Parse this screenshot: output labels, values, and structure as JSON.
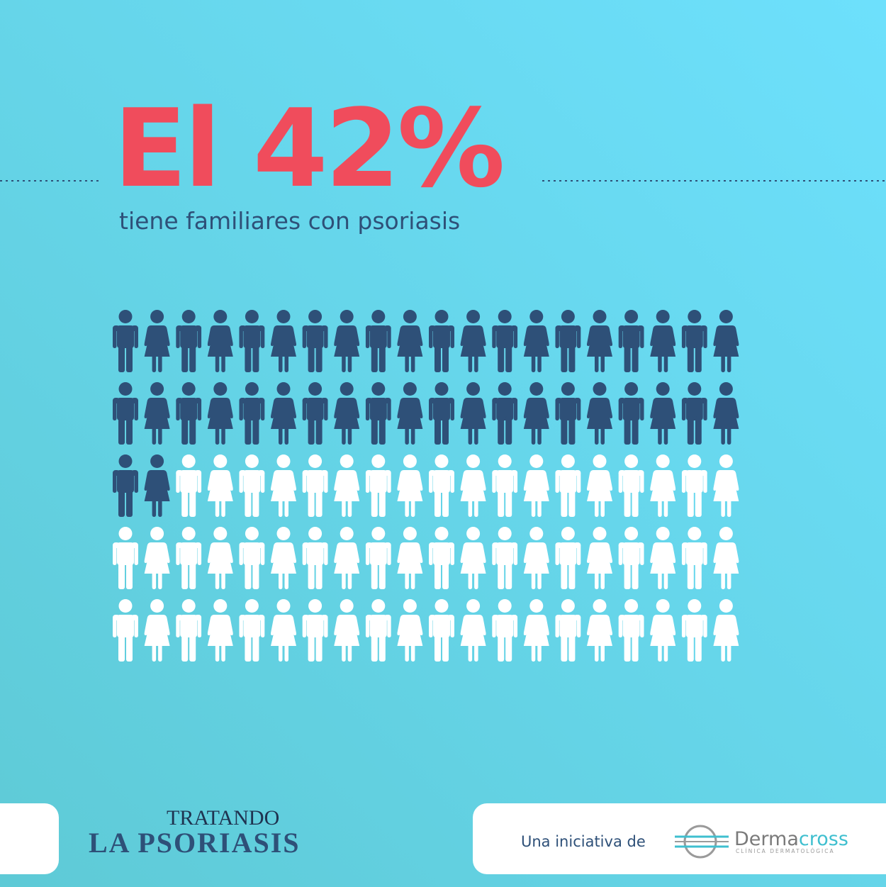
{
  "chart_data": {
    "type": "pictogram",
    "values": [
      42
    ],
    "value_labels": [
      "El 42%"
    ],
    "subtitle": "tiene familiares con psoriasis",
    "color": "#2e5078",
    "empty_color": "#ffffff",
    "title_color": "#f04c5c"
  },
  "footer": {
    "campaign_line1": "TRATANDO",
    "campaign_line2": "LA PSORIASIS",
    "initiative": "Una iniciativa de",
    "logo": {
      "name_part1": "Derma",
      "name_part2": "cross",
      "tagline": "CLÍNICA DERMATOLÓGICA"
    }
  }
}
